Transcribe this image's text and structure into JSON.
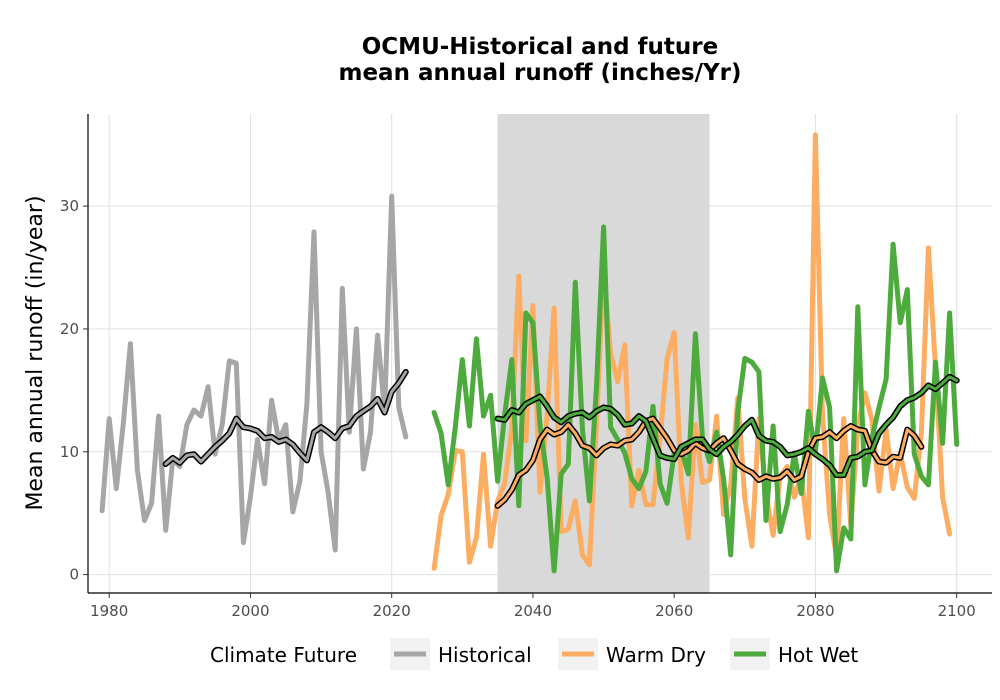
{
  "chart_data": {
    "type": "line",
    "title_line1": "OCMU-Historical and future",
    "title_line2": "mean annual runoff (inches/Yr)",
    "xlabel": "",
    "ylabel": "Mean annual runoff (in/year)",
    "xlim": [
      1977,
      2105
    ],
    "ylim": [
      -1.5,
      37.5
    ],
    "x_ticks": [
      "1980",
      "2000",
      "2020",
      "2040",
      "2060",
      "2080",
      "2100"
    ],
    "y_ticks": [
      "0",
      "10",
      "20",
      "30"
    ],
    "grid": true,
    "shaded_period": [
      2035,
      2065
    ],
    "legend": {
      "title": "Climate Future",
      "position": "bottom",
      "entries": [
        "Historical",
        "Warm Dry",
        "Hot Wet"
      ]
    },
    "colors": {
      "Historical": "#a6a6a6",
      "Warm Dry": "#fdad61",
      "Hot Wet": "#4daa3c",
      "smooth_outline": "#000000",
      "shading": "#d9d9d9"
    },
    "series": [
      {
        "name": "Historical",
        "x_start": 1979,
        "values": [
          5.2,
          12.7,
          7.0,
          12.3,
          18.8,
          8.5,
          4.4,
          5.8,
          12.9,
          3.6,
          9.4,
          8.8,
          12.2,
          13.4,
          12.9,
          15.3,
          9.8,
          12.2,
          17.4,
          17.2,
          2.6,
          6.3,
          11.0,
          7.4,
          14.2,
          10.9,
          12.2,
          5.1,
          7.6,
          13.9,
          27.9,
          10.0,
          6.7,
          2.0,
          23.3,
          11.6,
          20.0,
          8.6,
          11.6,
          19.5,
          13.3,
          30.8,
          13.6,
          11.2
        ],
        "smooth_x_start": 1988,
        "smooth_values": [
          9.0,
          9.5,
          9.1,
          9.7,
          9.8,
          9.2,
          9.8,
          10.4,
          10.9,
          11.5,
          12.7,
          12.0,
          11.9,
          11.7,
          11.1,
          11.2,
          10.8,
          11.0,
          10.6,
          9.9,
          9.3,
          11.6,
          12.0,
          11.6,
          11.1,
          11.9,
          12.1,
          12.9,
          13.3,
          13.7,
          14.3,
          13.2,
          14.9,
          15.6,
          16.5
        ]
      },
      {
        "name": "Warm Dry",
        "x_start": 2026,
        "values": [
          0.5,
          4.8,
          6.5,
          10.1,
          10.0,
          1.0,
          3.0,
          9.8,
          2.3,
          6.0,
          7.4,
          11.9,
          24.3,
          10.9,
          21.9,
          6.7,
          13.0,
          21.7,
          3.5,
          3.7,
          6.0,
          1.6,
          0.8,
          12.3,
          24.9,
          18.0,
          15.7,
          18.7,
          5.6,
          8.5,
          5.7,
          5.7,
          11.1,
          17.6,
          19.7,
          7.5,
          3.0,
          12.2,
          7.5,
          7.7,
          12.9,
          4.9,
          7.3,
          14.4,
          6.2,
          2.3,
          12.7,
          6.5,
          3.2,
          8.0,
          8.8,
          6.3,
          8.0,
          3.0,
          35.8,
          13.0,
          4.9,
          1.4,
          12.7,
          4.0,
          12.0,
          14.8,
          12.6,
          6.8,
          11.8,
          7.0,
          9.9,
          7.1,
          6.2,
          11.6,
          26.6,
          16.8,
          6.3,
          3.3
        ],
        "smooth_x_start": 2035,
        "smooth_values": [
          5.6,
          6.1,
          6.9,
          8.1,
          8.5,
          9.3,
          11.0,
          11.8,
          11.4,
          11.6,
          12.2,
          11.5,
          10.5,
          10.3,
          9.7,
          10.3,
          10.6,
          10.5,
          10.9,
          11.0,
          11.6,
          12.5,
          12.7,
          11.9,
          11.1,
          10.1,
          9.8,
          10.1,
          10.7,
          10.3,
          10.1,
          10.7,
          11.1,
          10.1,
          9.0,
          8.6,
          8.3,
          7.7,
          8.0,
          7.8,
          7.9,
          8.4,
          7.7,
          8.0,
          10.0,
          11.1,
          11.2,
          11.6,
          11.1,
          11.7,
          12.1,
          11.8,
          11.7,
          10.1,
          9.2,
          9.1,
          9.6,
          9.5,
          11.8,
          11.3,
          10.4
        ]
      },
      {
        "name": "Hot Wet",
        "x_start": 2026,
        "values": [
          13.2,
          11.5,
          7.3,
          12.0,
          17.5,
          12.1,
          19.2,
          12.9,
          14.6,
          7.6,
          13.0,
          17.5,
          5.6,
          21.3,
          20.5,
          12.2,
          7.9,
          0.3,
          8.2,
          9.0,
          23.8,
          11.9,
          6.0,
          15.3,
          28.3,
          12.0,
          11.0,
          9.9,
          7.8,
          7.0,
          8.4,
          13.7,
          7.4,
          5.8,
          9.9,
          10.2,
          8.2,
          19.6,
          11.2,
          9.2,
          11.6,
          7.8,
          1.6,
          13.3,
          17.6,
          17.3,
          16.5,
          4.4,
          12.1,
          3.5,
          5.7,
          9.9,
          6.6,
          13.3,
          10.0,
          16.0,
          13.6,
          0.3,
          3.8,
          2.9,
          21.8,
          7.3,
          11.1,
          13.6,
          15.9,
          26.9,
          20.5,
          23.2,
          9.8,
          8.0,
          7.3,
          17.3,
          10.7,
          21.3,
          10.6
        ],
        "smooth_x_start": 2035,
        "smooth_values": [
          12.7,
          12.6,
          13.4,
          13.2,
          13.9,
          14.2,
          14.5,
          13.7,
          12.8,
          12.4,
          12.9,
          13.1,
          13.2,
          12.8,
          13.3,
          13.6,
          13.5,
          13.0,
          12.2,
          12.3,
          12.9,
          12.5,
          11.1,
          9.7,
          9.5,
          9.4,
          10.4,
          10.7,
          11.0,
          11.0,
          10.2,
          9.8,
          10.4,
          10.8,
          11.4,
          12.1,
          12.6,
          11.3,
          10.9,
          10.8,
          10.4,
          9.7,
          9.8,
          10.0,
          10.3,
          9.8,
          9.4,
          8.9,
          8.1,
          8.1,
          9.5,
          9.6,
          10.0,
          10.1,
          11.5,
          12.2,
          12.8,
          13.7,
          14.2,
          14.4,
          14.8,
          15.4,
          15.1,
          15.6,
          16.1,
          15.8
        ]
      }
    ]
  }
}
